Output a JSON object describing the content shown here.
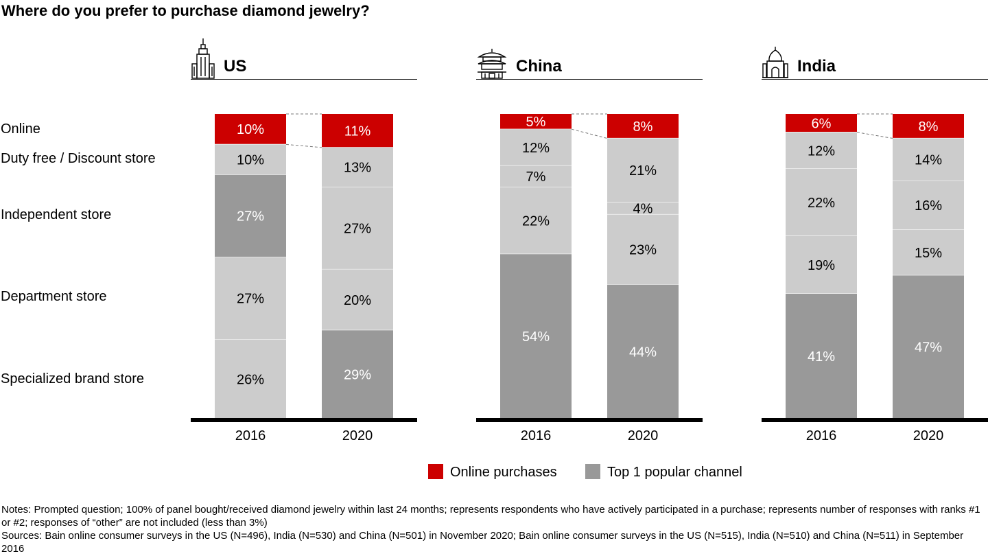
{
  "title": "Where do you prefer to purchase diamond jewelry?",
  "colors": {
    "online": "#cc0000",
    "top_channel": "#999999",
    "other_segment": "#cccccc",
    "baseline": "#000000"
  },
  "row_labels": [
    "Online",
    "Duty free / Discount store",
    "Independent store",
    "Department store",
    "Specialized brand store"
  ],
  "panels": [
    {
      "name": "US",
      "icon": "skyscraper-icon"
    },
    {
      "name": "China",
      "icon": "pagoda-icon"
    },
    {
      "name": "India",
      "icon": "taj-mahal-icon"
    }
  ],
  "chart_data": [
    {
      "type": "bar",
      "stacked": true,
      "title": "US",
      "categories": [
        "2016",
        "2020"
      ],
      "series": [
        {
          "name": "Online",
          "values": [
            10,
            11
          ],
          "labels": [
            "10%",
            "11%"
          ],
          "highlight": [
            "online",
            "online"
          ]
        },
        {
          "name": "Duty free / Discount store",
          "values": [
            10,
            13
          ],
          "labels": [
            "10%",
            "13%"
          ],
          "highlight": [
            "other",
            "other"
          ]
        },
        {
          "name": "Independent store",
          "values": [
            27,
            27
          ],
          "labels": [
            "27%",
            "27%"
          ],
          "highlight": [
            "top",
            "other"
          ]
        },
        {
          "name": "Department store",
          "values": [
            27,
            20
          ],
          "labels": [
            "27%",
            "20%"
          ],
          "highlight": [
            "other",
            "other"
          ]
        },
        {
          "name": "Specialized brand store",
          "values": [
            26,
            29
          ],
          "labels": [
            "26%",
            "29%"
          ],
          "highlight": [
            "other",
            "top"
          ]
        }
      ]
    },
    {
      "type": "bar",
      "stacked": true,
      "title": "China",
      "categories": [
        "2016",
        "2020"
      ],
      "series": [
        {
          "name": "Online",
          "values": [
            5,
            8
          ],
          "labels": [
            "5%",
            "8%"
          ],
          "highlight": [
            "online",
            "online"
          ]
        },
        {
          "name": "Duty free / Discount store",
          "values": [
            12,
            21
          ],
          "labels": [
            "12%",
            "21%"
          ],
          "highlight": [
            "other",
            "other"
          ]
        },
        {
          "name": "Independent store",
          "values": [
            7,
            4
          ],
          "labels": [
            "7%",
            "4%"
          ],
          "highlight": [
            "other",
            "other"
          ]
        },
        {
          "name": "Department store",
          "values": [
            22,
            23
          ],
          "labels": [
            "22%",
            "23%"
          ],
          "highlight": [
            "other",
            "other"
          ]
        },
        {
          "name": "Specialized brand store",
          "values": [
            54,
            44
          ],
          "labels": [
            "54%",
            "44%"
          ],
          "highlight": [
            "top",
            "top"
          ]
        }
      ]
    },
    {
      "type": "bar",
      "stacked": true,
      "title": "India",
      "categories": [
        "2016",
        "2020"
      ],
      "series": [
        {
          "name": "Online",
          "values": [
            6,
            8
          ],
          "labels": [
            "6%",
            "8%"
          ],
          "highlight": [
            "online",
            "online"
          ]
        },
        {
          "name": "Duty free / Discount store",
          "values": [
            12,
            14
          ],
          "labels": [
            "12%",
            "14%"
          ],
          "highlight": [
            "other",
            "other"
          ]
        },
        {
          "name": "Independent store",
          "values": [
            22,
            16
          ],
          "labels": [
            "22%",
            "16%"
          ],
          "highlight": [
            "other",
            "other"
          ]
        },
        {
          "name": "Department store",
          "values": [
            19,
            15
          ],
          "labels": [
            "19%",
            "15%"
          ],
          "highlight": [
            "other",
            "other"
          ]
        },
        {
          "name": "Specialized brand store",
          "values": [
            41,
            47
          ],
          "labels": [
            "41%",
            "47%"
          ],
          "highlight": [
            "top",
            "top"
          ]
        }
      ]
    }
  ],
  "legend": {
    "online_label": "Online purchases",
    "top_label": "Top 1 popular channel"
  },
  "notes": {
    "notes_text": "Notes: Prompted question; 100% of panel bought/received diamond jewelry within last 24 months; represents respondents who have actively participated in a purchase; represents number of responses with ranks #1 or #2; responses of “other” are not included (less than 3%)",
    "sources_text": "Sources: Bain online consumer surveys in the US (N=496), India (N=530) and China (N=501) in November 2020; Bain online consumer surveys in the US (N=515), India (N=510) and China (N=511) in September 2016"
  }
}
